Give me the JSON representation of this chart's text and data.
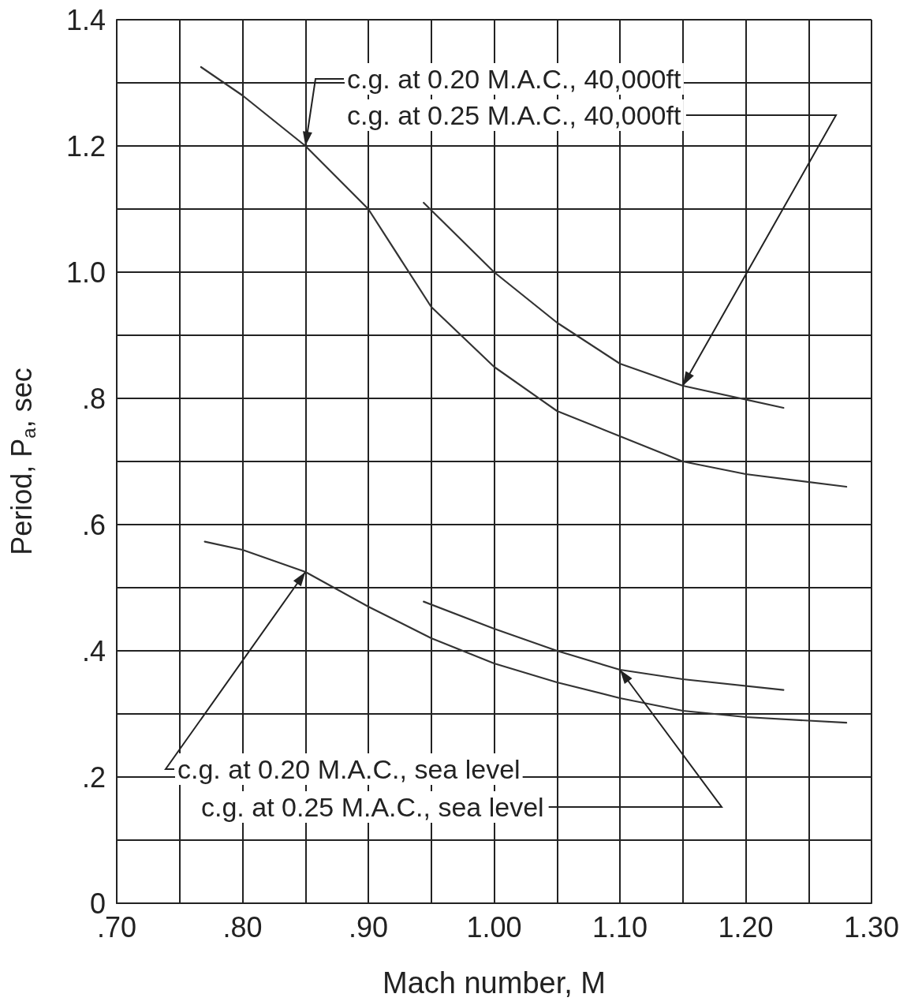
{
  "chart_data": {
    "type": "line",
    "xlabel": "Mach number, M",
    "ylabel": "Period, P$_{a}$, sec",
    "xlim": [
      0.7,
      1.3
    ],
    "xticks": [
      {
        "value": 0.7,
        "label": ".70"
      },
      {
        "value": 0.75,
        "label": null
      },
      {
        "value": 0.8,
        "label": ".80"
      },
      {
        "value": 0.85,
        "label": null
      },
      {
        "value": 0.9,
        "label": ".90"
      },
      {
        "value": 0.95,
        "label": null
      },
      {
        "value": 1.0,
        "label": "1.00"
      },
      {
        "value": 1.05,
        "label": null
      },
      {
        "value": 1.1,
        "label": "1.10"
      },
      {
        "value": 1.15,
        "label": null
      },
      {
        "value": 1.2,
        "label": "1.20"
      },
      {
        "value": 1.25,
        "label": null
      },
      {
        "value": 1.3,
        "label": "1.30"
      }
    ],
    "ylim": [
      0,
      1.4
    ],
    "yticks": [
      0,
      {
        "value": 0.1,
        "label": null
      },
      {
        "value": 0.2,
        "label": ".2"
      },
      {
        "value": 0.3,
        "label": null
      },
      {
        "value": 0.4,
        "label": ".4"
      },
      {
        "value": 0.5,
        "label": null
      },
      {
        "value": 0.6,
        "label": ".6"
      },
      {
        "value": 0.7,
        "label": null
      },
      {
        "value": 0.8,
        "label": ".8"
      },
      {
        "value": 0.9,
        "label": null
      },
      {
        "value": 1.0,
        "label": "1.0"
      },
      {
        "value": 1.1,
        "label": null
      },
      {
        "value": 1.2,
        "label": "1.2"
      },
      {
        "value": 1.3,
        "label": null
      },
      {
        "value": 1.4,
        "label": "1.4"
      }
    ],
    "grid": true,
    "legend": false,
    "marker": "none",
    "line_style": "solid",
    "series": [
      {
        "name": "c.g. at 0.20 M.A.C., 40,000ft",
        "color": "#333333",
        "x": [
          0.767,
          0.8,
          0.85,
          0.9,
          0.95,
          1.0,
          1.05,
          1.1,
          1.15,
          1.2,
          1.28
        ],
        "values": [
          1.325,
          1.28,
          1.2,
          1.1,
          0.945,
          0.85,
          0.78,
          0.74,
          0.7,
          0.68,
          0.66
        ]
      },
      {
        "name": "c.g. at 0.25 M.A.C., 40,000ft",
        "color": "#333333",
        "x": [
          0.944,
          1.0,
          1.05,
          1.1,
          1.15,
          1.23
        ],
        "values": [
          1.11,
          1.0,
          0.92,
          0.855,
          0.82,
          0.785
        ]
      },
      {
        "name": "c.g. at 0.20 M.A.C., sea level",
        "color": "#333333",
        "x": [
          0.77,
          0.8,
          0.85,
          0.9,
          0.95,
          1.0,
          1.05,
          1.1,
          1.15,
          1.2,
          1.28
        ],
        "values": [
          0.573,
          0.56,
          0.525,
          0.47,
          0.42,
          0.38,
          0.35,
          0.325,
          0.305,
          0.295,
          0.286
        ]
      },
      {
        "name": "c.g. at 0.25 M.A.C., sea level",
        "color": "#333333",
        "x": [
          0.944,
          1.0,
          1.05,
          1.1,
          1.15,
          1.23
        ],
        "values": [
          0.478,
          0.435,
          0.4,
          0.37,
          0.355,
          0.338
        ]
      }
    ]
  }
}
